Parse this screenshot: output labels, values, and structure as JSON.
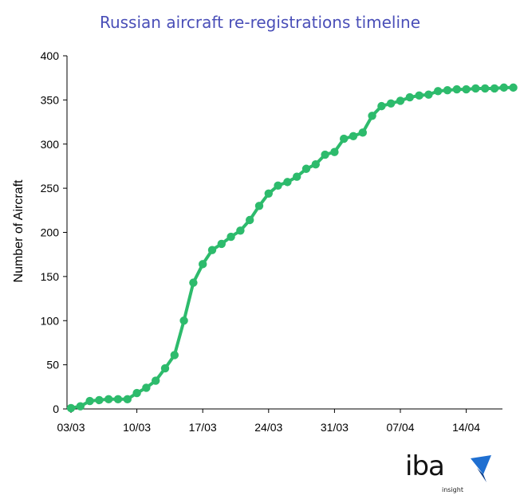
{
  "chart_data": {
    "type": "line",
    "title": "Russian aircraft re-registrations timeline",
    "ylabel": "Number of Aircraft",
    "xlabel": "",
    "ylim": [
      0,
      400
    ],
    "yticks": [
      0,
      50,
      100,
      150,
      200,
      250,
      300,
      350,
      400
    ],
    "x_tick_labels": [
      "03/03",
      "10/03",
      "17/03",
      "24/03",
      "31/03",
      "07/04",
      "14/04"
    ],
    "x": [
      "03/03",
      "04/03",
      "05/03",
      "06/03",
      "07/03",
      "08/03",
      "09/03",
      "10/03",
      "11/03",
      "12/03",
      "13/03",
      "14/03",
      "15/03",
      "16/03",
      "17/03",
      "18/03",
      "19/03",
      "20/03",
      "21/03",
      "22/03",
      "23/03",
      "24/03",
      "25/03",
      "26/03",
      "27/03",
      "28/03",
      "29/03",
      "30/03",
      "31/03",
      "01/04",
      "02/04",
      "03/04",
      "04/04",
      "05/04",
      "06/04",
      "07/04",
      "08/04",
      "09/04",
      "10/04",
      "11/04",
      "12/04",
      "13/04",
      "14/04",
      "15/04",
      "16/04",
      "17/04",
      "18/04",
      "19/04"
    ],
    "series": [
      {
        "values": [
          1,
          3,
          9,
          10,
          11,
          11,
          11,
          18,
          24,
          32,
          46,
          61,
          100,
          143,
          164,
          180,
          187,
          195,
          202,
          214,
          230,
          244,
          253,
          257,
          263,
          272,
          277,
          288,
          291,
          306,
          309,
          313,
          332,
          343,
          346,
          349,
          353,
          355,
          356,
          360,
          361,
          362,
          362,
          363,
          363,
          363,
          364,
          364
        ],
        "color": "#2dbb6c"
      }
    ],
    "grid": false,
    "legend": "none",
    "title_color": "#4a4fb8"
  },
  "logo": {
    "text": "iba",
    "subtitle": "insight",
    "mark_color": "#1f6fd1"
  }
}
